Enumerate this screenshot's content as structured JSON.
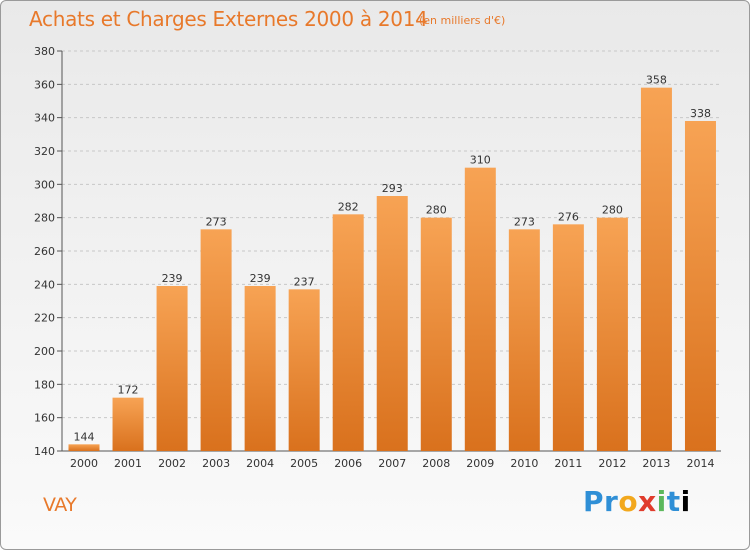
{
  "header": {
    "title": "Achats et Charges Externes 2000 à 2014",
    "unit": "(en milliers d'€)"
  },
  "footer": {
    "place": "VAY",
    "logo": "Proxiti"
  },
  "colors": {
    "accent": "#e8792b",
    "bar_top": "#f7a354",
    "bar_bottom": "#d9711d"
  },
  "chart_data": {
    "type": "bar",
    "title": "Achats et Charges Externes 2000 à 2014",
    "subtitle": "(en milliers d'€)",
    "categories": [
      "2000",
      "2001",
      "2002",
      "2003",
      "2004",
      "2005",
      "2006",
      "2007",
      "2008",
      "2009",
      "2010",
      "2011",
      "2012",
      "2013",
      "2014"
    ],
    "values": [
      144,
      172,
      239,
      273,
      239,
      237,
      282,
      293,
      280,
      310,
      273,
      276,
      280,
      358,
      338
    ],
    "ylim": [
      140,
      380
    ],
    "yticks": [
      140,
      160,
      180,
      200,
      220,
      240,
      260,
      280,
      300,
      320,
      340,
      360,
      380
    ],
    "grid": true,
    "data_labels": true
  }
}
